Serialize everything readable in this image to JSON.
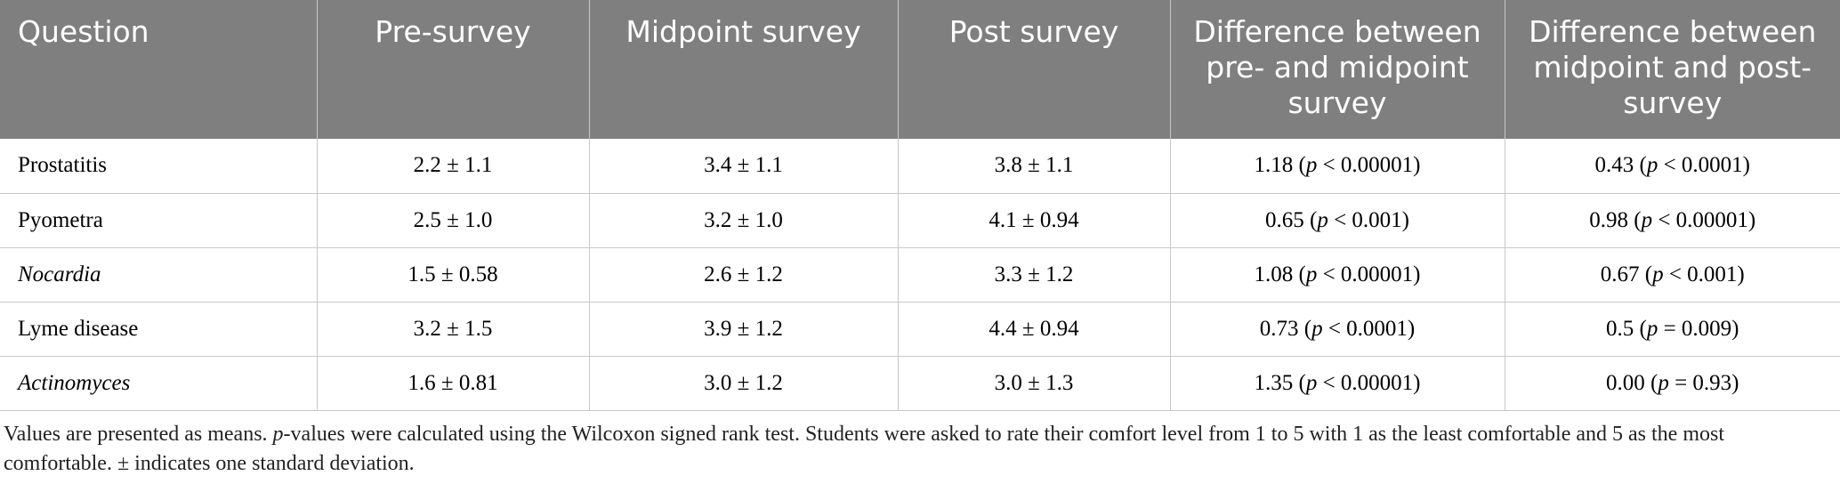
{
  "table": {
    "header": [
      "Question",
      "Pre-survey",
      "Midpoint survey",
      "Post survey",
      "Difference between pre- and midpoint survey",
      "Difference between midpoint and post-survey"
    ],
    "rows": [
      [
        "Prostatitis",
        "2.2 ± 1.1",
        "3.4 ± 1.1",
        "3.8 ± 1.1",
        "1.18 (p < 0.00001)",
        "0.43 (p < 0.0001)"
      ],
      [
        "Pyometra",
        "2.5 ± 1.0",
        "3.2 ± 1.0",
        "4.1 ± 0.94",
        "0.65 (p < 0.001)",
        "0.98 (p < 0.00001)"
      ],
      [
        "Nocardia",
        "1.5 ± 0.58",
        "2.6 ± 1.2",
        "3.3 ± 1.2",
        "1.08 (p < 0.00001)",
        "0.67 (p < 0.001)"
      ],
      [
        "Lyme disease",
        "3.2 ± 1.5",
        "3.9 ± 1.2",
        "4.4 ± 0.94",
        "0.73 (p < 0.0001)",
        "0.5 (p = 0.009)"
      ],
      [
        "Actinomyces",
        "1.6 ± 0.81",
        "3.0 ± 1.2",
        "3.0 ± 1.3",
        "1.35 (p < 0.00001)",
        "0.00 (p = 0.93)"
      ]
    ],
    "footnote": "Values are presented as means. p-values were calculated using the Wilcoxon signed rank test. Students were asked to rate their comfort level from 1 to 5 with 1 as the least comfortable and 5 as the most comfortable. ± indicates one standard deviation."
  }
}
